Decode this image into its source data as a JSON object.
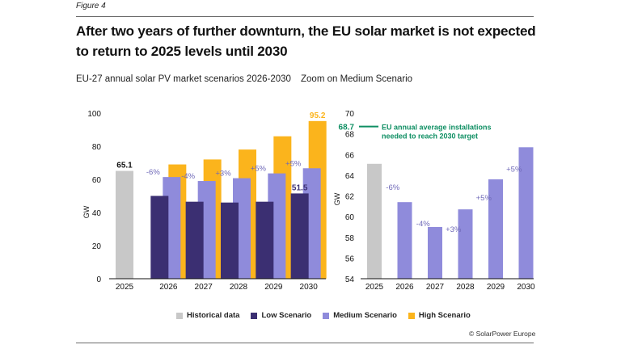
{
  "figure_label": "Figure 4",
  "title": "After two years of further downturn, the EU solar market is not expected to return to 2025 levels until 2030",
  "credit": "© SolarPower Europe",
  "colors": {
    "historical": "#c8c8c8",
    "low": "#3b2f72",
    "medium": "#8f8bdb",
    "high": "#fbb41c",
    "target": "#0f8f63",
    "pct_label": "#6f69b8",
    "axis": "#111111"
  },
  "legend": [
    {
      "key": "historical",
      "label": "Historical data"
    },
    {
      "key": "low",
      "label": "Low Scenario"
    },
    {
      "key": "medium",
      "label": "Medium Scenario"
    },
    {
      "key": "high",
      "label": "High Scenario"
    }
  ],
  "chart_data": [
    {
      "type": "bar",
      "title": "EU-27 annual solar PV market scenarios 2026-2030",
      "xlabel": "",
      "ylabel": "GW",
      "ylim": [
        0,
        100
      ],
      "yticks": [
        0,
        20,
        40,
        60,
        80,
        100
      ],
      "grid": false,
      "legend_position": "bottom",
      "categories": [
        "2025",
        "2026",
        "2027",
        "2028",
        "2029",
        "2030"
      ],
      "series": [
        {
          "name": "Historical data",
          "key": "historical",
          "values": [
            65.1,
            null,
            null,
            null,
            null,
            null
          ]
        },
        {
          "name": "Low Scenario",
          "key": "low",
          "values": [
            null,
            50.0,
            46.5,
            46.0,
            46.5,
            51.5
          ]
        },
        {
          "name": "Medium Scenario",
          "key": "medium",
          "values": [
            null,
            61.4,
            59.0,
            60.7,
            63.6,
            66.7
          ]
        },
        {
          "name": "High Scenario",
          "key": "high",
          "values": [
            null,
            69.0,
            72.0,
            78.0,
            86.0,
            95.2
          ]
        }
      ],
      "data_labels": [
        {
          "category": "2025",
          "series": "historical",
          "text": "65.1"
        },
        {
          "category": "2030",
          "series": "low",
          "text": "51.5"
        },
        {
          "category": "2030",
          "series": "high",
          "text": "95.2"
        }
      ],
      "pct_labels": [
        {
          "category": "2026",
          "text": "-6%"
        },
        {
          "category": "2027",
          "text": "-4%"
        },
        {
          "category": "2028",
          "text": "+3%"
        },
        {
          "category": "2029",
          "text": "+5%"
        },
        {
          "category": "2030",
          "text": "+5%"
        }
      ]
    },
    {
      "type": "bar",
      "title": "Zoom on Medium Scenario",
      "xlabel": "",
      "ylabel": "GW",
      "ylim": [
        54,
        70
      ],
      "yticks": [
        54,
        56,
        58,
        60,
        62,
        64,
        66,
        68,
        70
      ],
      "grid": false,
      "categories": [
        "2025",
        "2026",
        "2027",
        "2028",
        "2029",
        "2030"
      ],
      "series": [
        {
          "name": "Historical data",
          "key": "historical",
          "values": [
            65.1,
            null,
            null,
            null,
            null,
            null
          ]
        },
        {
          "name": "Medium Scenario",
          "key": "medium",
          "values": [
            null,
            61.4,
            59.0,
            60.7,
            63.6,
            66.7
          ]
        }
      ],
      "pct_labels": [
        {
          "category": "2026",
          "text": "-6%"
        },
        {
          "category": "2027",
          "text": "-4%"
        },
        {
          "category": "2028",
          "text": "+3%"
        },
        {
          "category": "2029",
          "text": "+5%"
        },
        {
          "category": "2030",
          "text": "+5%"
        }
      ],
      "reference_line": {
        "value": 68.7,
        "value_label": "68.7",
        "text_line1": "EU annual average installations",
        "text_line2": "needed to reach 2030 target"
      }
    }
  ]
}
